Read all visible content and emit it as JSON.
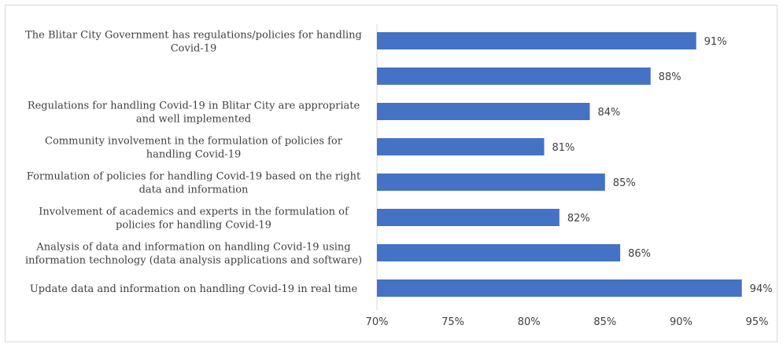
{
  "chart_data": {
    "type": "bar",
    "orientation": "horizontal",
    "categories": [
      [
        "The Blitar City Government has regulations/policies for handling",
        "Covid-19"
      ],
      [
        ""
      ],
      [
        "Regulations for handling Covid-19 in Blitar City are appropriate",
        "and well implemented"
      ],
      [
        "Community involvement in the formulation of policies for",
        "handling Covid-19"
      ],
      [
        "Formulation of policies for handling Covid-19 based on the right",
        "data and information"
      ],
      [
        "Involvement of academics and experts in the formulation of",
        "policies for handling Covid-19"
      ],
      [
        "Analysis of data and information on handling Covid-19 using",
        "information technology (data analysis applications and software)"
      ],
      [
        "Update data and information on handling Covid-19 in real time"
      ]
    ],
    "values": [
      91,
      88,
      84,
      81,
      85,
      82,
      86,
      94
    ],
    "value_labels": [
      "91%",
      "88%",
      "84%",
      "81%",
      "85%",
      "82%",
      "86%",
      "94%"
    ],
    "xlim": [
      70,
      95
    ],
    "x_ticks": [
      70,
      75,
      80,
      85,
      90,
      95
    ],
    "x_tick_labels": [
      "70%",
      "75%",
      "80%",
      "85%",
      "90%",
      "95%"
    ],
    "grid": false,
    "bar_color": "#4472c4",
    "axis_color": "#d9d9d9"
  }
}
